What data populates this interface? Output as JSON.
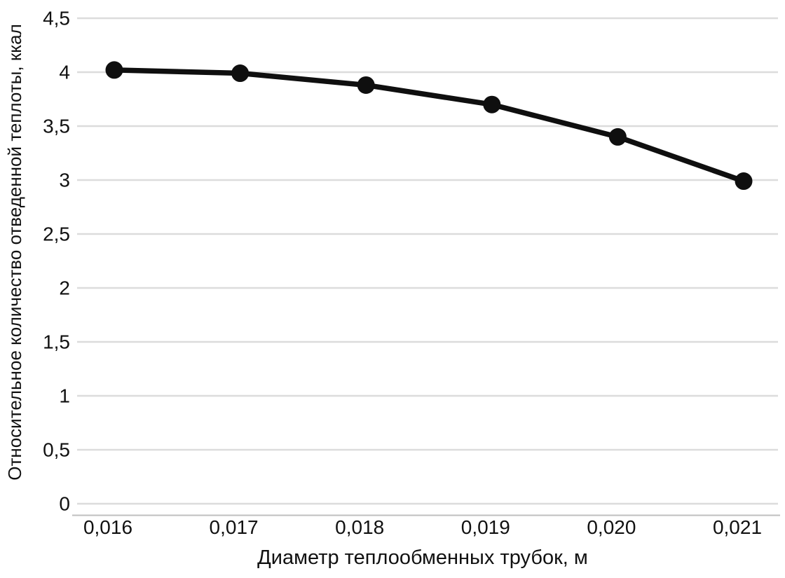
{
  "chart_data": {
    "type": "line",
    "title": "",
    "categories": [
      "0,016",
      "0,017",
      "0,018",
      "0,019",
      "0,020",
      "0,021"
    ],
    "x_numeric": [
      0.016,
      0.017,
      0.018,
      0.019,
      0.02,
      0.021
    ],
    "series": [
      {
        "name": "Относительное количество отведенной теплоты",
        "values": [
          4.02,
          3.99,
          3.88,
          3.7,
          3.4,
          2.99
        ]
      }
    ],
    "xlabel": "Диаметр теплообменных трубок, м",
    "ylabel": "Относительное количество отведенной теплоты, ккал",
    "ylim": [
      0,
      4.5
    ],
    "y_ticks": [
      "0",
      "0,5",
      "1",
      "1,5",
      "2",
      "2,5",
      "3",
      "3,5",
      "4",
      "4,5"
    ],
    "y_tick_values": [
      0,
      0.5,
      1,
      1.5,
      2,
      2.5,
      3,
      3.5,
      4,
      4.5
    ],
    "grid": "horizontal",
    "legend": "none",
    "marker": "circle",
    "colors": {
      "line": "#0f0f0f",
      "marker": "#0f0f0f",
      "gridline": "#dcdcdc",
      "axis_line": "#bfbfbf",
      "text": "#111111",
      "background": "#ffffff"
    }
  }
}
